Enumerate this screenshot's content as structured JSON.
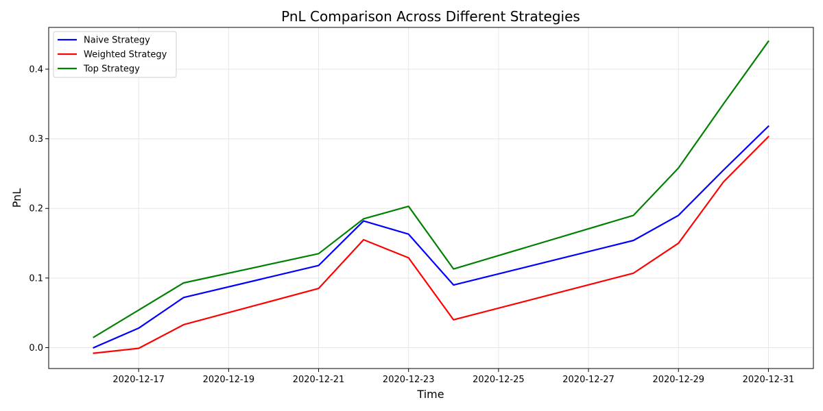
{
  "chart_data": {
    "type": "line",
    "title": "PnL Comparison Across Different Strategies",
    "xlabel": "Time",
    "ylabel": "PnL",
    "grid": true,
    "legend_position": "top-left",
    "x": [
      "2020-12-16",
      "2020-12-17",
      "2020-12-18",
      "2020-12-21",
      "2020-12-22",
      "2020-12-23",
      "2020-12-24",
      "2020-12-28",
      "2020-12-29",
      "2020-12-30",
      "2020-12-31"
    ],
    "xlim": [
      "2020-12-15",
      "2021-01-01"
    ],
    "xticks": [
      "2020-12-17",
      "2020-12-19",
      "2020-12-21",
      "2020-12-23",
      "2020-12-25",
      "2020-12-27",
      "2020-12-29",
      "2020-12-31"
    ],
    "ylim": [
      -0.03,
      0.46
    ],
    "yticks": [
      0.0,
      0.1,
      0.2,
      0.3,
      0.4
    ],
    "ytick_labels": [
      "0.0",
      "0.1",
      "0.2",
      "0.3",
      "0.4"
    ],
    "series": [
      {
        "name": "Naive Strategy",
        "color": "#0000ff",
        "values": [
          0.0,
          0.028,
          0.072,
          0.118,
          0.182,
          0.163,
          0.09,
          0.154,
          0.19,
          0.255,
          0.318
        ]
      },
      {
        "name": "Weighted Strategy",
        "color": "#ff0000",
        "values": [
          -0.008,
          -0.001,
          0.033,
          0.085,
          0.155,
          0.129,
          0.04,
          0.107,
          0.15,
          0.238,
          0.303
        ]
      },
      {
        "name": "Top Strategy",
        "color": "#008000",
        "values": [
          0.015,
          0.054,
          0.093,
          0.135,
          0.185,
          0.203,
          0.113,
          0.19,
          0.258,
          0.35,
          0.44
        ]
      }
    ]
  }
}
